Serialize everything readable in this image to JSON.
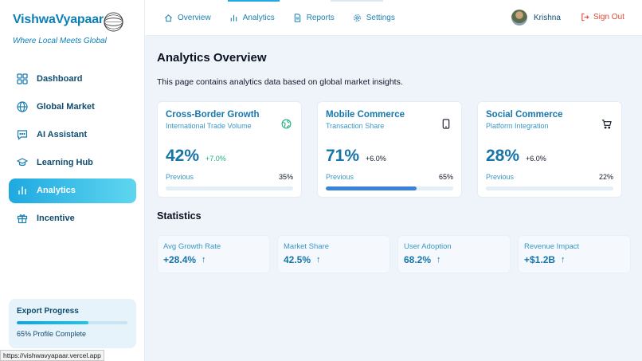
{
  "brand": {
    "name": "VishwaVyapaar",
    "tagline": "Where Local Meets Global"
  },
  "sidebar": {
    "items": [
      {
        "label": "Dashboard",
        "icon": "dashboard-icon",
        "active": false
      },
      {
        "label": "Global Market",
        "icon": "globe-icon",
        "active": false
      },
      {
        "label": "AI Assistant",
        "icon": "chat-icon",
        "active": false
      },
      {
        "label": "Learning Hub",
        "icon": "graduation-cap-icon",
        "active": false
      },
      {
        "label": "Analytics",
        "icon": "bar-chart-icon",
        "active": true
      },
      {
        "label": "Incentive",
        "icon": "gift-icon",
        "active": false
      }
    ],
    "export": {
      "title": "Export Progress",
      "progress": 0.65,
      "text": "65% Profile Complete"
    }
  },
  "topbar": {
    "tabs": [
      {
        "label": "Overview",
        "icon": "home-icon"
      },
      {
        "label": "Analytics",
        "icon": "bar-chart-icon",
        "active": true
      },
      {
        "label": "Reports",
        "icon": "document-icon"
      },
      {
        "label": "Settings",
        "icon": "gear-icon"
      }
    ],
    "user": {
      "name": "Krishna"
    },
    "signout_label": "Sign Out"
  },
  "main": {
    "title": "Analytics Overview",
    "description": "This page contains analytics data based on global market insights.",
    "cards": [
      {
        "title": "Cross-Border Growth",
        "subtitle": "International Trade Volume",
        "value": "42%",
        "change": "+7.0%",
        "change_color": "#22b07d",
        "prev_label": "Previous",
        "prev_value": "35%",
        "progress": 0.0,
        "bar_color": "#e3eef6",
        "icon": "globe-icon"
      },
      {
        "title": "Mobile Commerce",
        "subtitle": "Transaction Share",
        "value": "71%",
        "change": "+6.0%",
        "change_color": "#111827",
        "prev_label": "Previous",
        "prev_value": "65%",
        "progress": 0.71,
        "bar_color": "#3b82d9",
        "icon": "smartphone-icon"
      },
      {
        "title": "Social Commerce",
        "subtitle": "Platform Integration",
        "value": "28%",
        "change": "+6.0%",
        "change_color": "#111827",
        "prev_label": "Previous",
        "prev_value": "22%",
        "progress": 0.0,
        "bar_color": "#e3eef6",
        "icon": "cart-icon"
      }
    ],
    "stats_title": "Statistics",
    "stats": [
      {
        "label": "Avg Growth Rate",
        "value": "+28.4%"
      },
      {
        "label": "Market Share",
        "value": "42.5%"
      },
      {
        "label": "User Adoption",
        "value": "68.2%"
      },
      {
        "label": "Revenue Impact",
        "value": "+$1.2B"
      }
    ]
  },
  "status_url": "https://vishwavyapaar.vercel.app",
  "colors": {
    "accent": "#1fa9e0",
    "brand": "#0e7fb6",
    "signout": "#e0473a"
  }
}
